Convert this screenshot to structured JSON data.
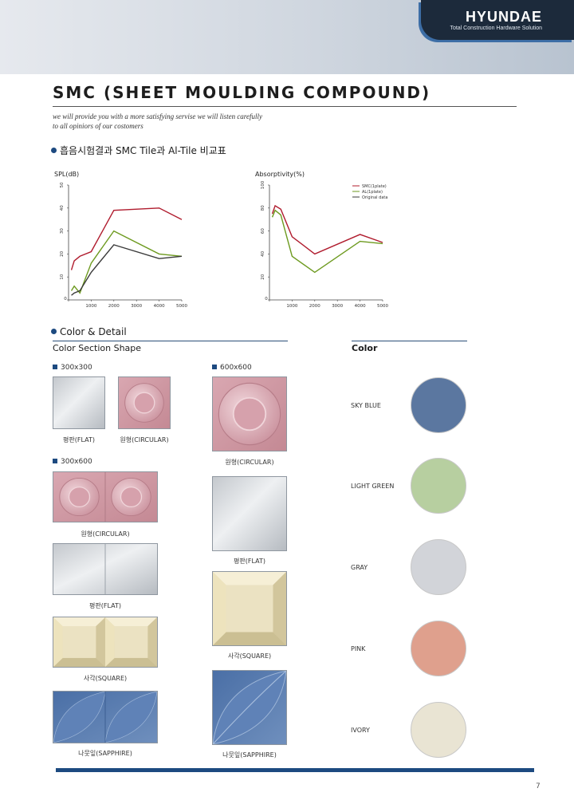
{
  "header": {
    "logo_text": "HYUNDAE",
    "logo_subtitle": "Total Construction Hardware Solution",
    "title": "SMC (SHEET MOULDING COMPOUND)",
    "tagline": [
      "we will provide you with a more satisfying servise we will listen carefully",
      "to all opiniors of our costomers"
    ]
  },
  "section_compare": {
    "heading": "흡음시험결과 SMC Tile과 Al-Tile 비교표"
  },
  "chart_data": [
    {
      "type": "line",
      "ylabel": "SPL(dB)",
      "xticks": [
        "0",
        "1000",
        "2000",
        "3000",
        "4000",
        "5000"
      ],
      "yticks": [
        "0",
        "10",
        "20",
        "30",
        "40",
        "50"
      ],
      "xlim": [
        0,
        5000
      ],
      "ylim": [
        0,
        50
      ],
      "series": [
        {
          "color": "#b01c2e",
          "x": [
            125,
            250,
            500,
            1000,
            2000,
            4000,
            5000
          ],
          "values": [
            13,
            17,
            19,
            21,
            39,
            40,
            35
          ]
        },
        {
          "color": "#6d9a1f",
          "x": [
            125,
            250,
            500,
            1000,
            2000,
            4000,
            5000
          ],
          "values": [
            4,
            6,
            3,
            16,
            30,
            20,
            19
          ]
        },
        {
          "color": "#3a3a3a",
          "x": [
            125,
            250,
            500,
            1000,
            2000,
            4000,
            5000
          ],
          "values": [
            2,
            3,
            4,
            12,
            24,
            18,
            19
          ]
        }
      ]
    },
    {
      "type": "line",
      "ylabel": "Absorptivity(%)",
      "xticks": [
        "0",
        "1000",
        "2000",
        "3000",
        "4000",
        "5000"
      ],
      "yticks": [
        "0",
        "20",
        "40",
        "60",
        "80",
        "100"
      ],
      "xlim": [
        0,
        5000
      ],
      "ylim": [
        0,
        100
      ],
      "legend_position": "top-right",
      "series": [
        {
          "name": "SMC(1plate)",
          "color": "#b01c2e",
          "x": [
            125,
            250,
            500,
            1000,
            2000,
            4000,
            5000
          ],
          "values": [
            75,
            82,
            79,
            55,
            40,
            57,
            50
          ]
        },
        {
          "name": "AL(1plate)",
          "color": "#6d9a1f",
          "x": [
            125,
            250,
            500,
            1000,
            2000,
            4000,
            5000
          ],
          "values": [
            72,
            78,
            74,
            38,
            24,
            51,
            49
          ]
        },
        {
          "name": "Original data",
          "color": "#3a3a3a",
          "x": [],
          "values": []
        }
      ]
    }
  ],
  "section_color": {
    "heading": "Color & Detail",
    "shape_heading": "Color Section Shape",
    "color_heading": "Color"
  },
  "sizes": {
    "s300x300": "300x300",
    "s600x600": "600x600",
    "s300x600": "300x600"
  },
  "captions": {
    "flat": "평판(FLAT)",
    "circular": "원형(CIRCULAR)",
    "square": "사각(SQUARE)",
    "sapphire": "나뭇잎(SAPPHIRE)"
  },
  "colors": [
    {
      "name": "SKY BLUE",
      "hex": "#5b77a0"
    },
    {
      "name": "LIGHT GREEN",
      "hex": "#b7cfa0"
    },
    {
      "name": "GRAY",
      "hex": "#d2d4d9"
    },
    {
      "name": "PINK",
      "hex": "#dfa08d"
    },
    {
      "name": "IVORY",
      "hex": "#e9e4d3"
    }
  ],
  "footer": {
    "page_number": "7"
  }
}
